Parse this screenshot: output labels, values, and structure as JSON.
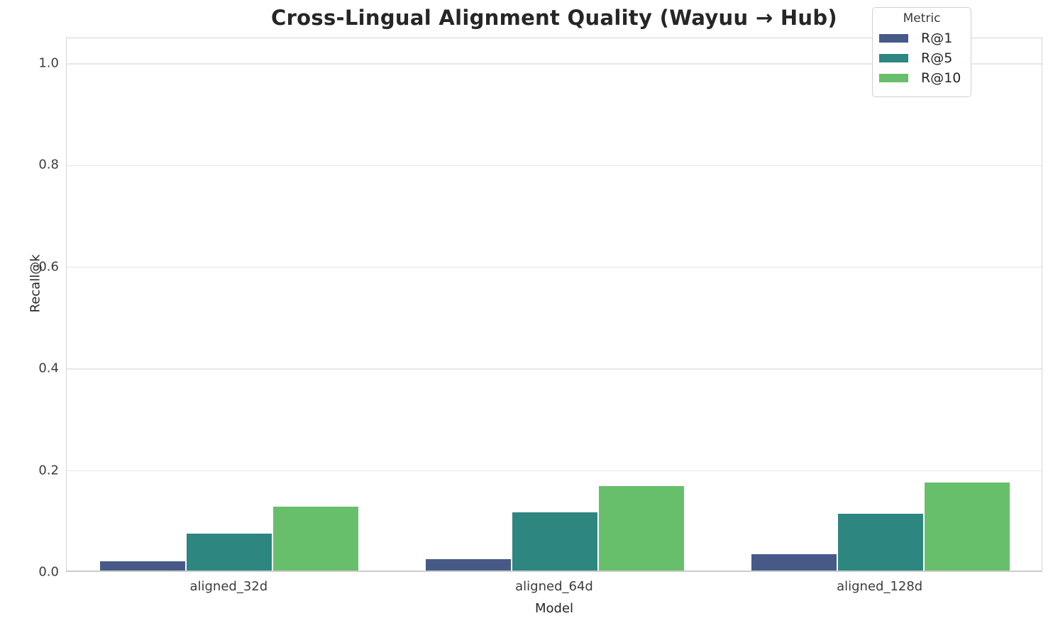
{
  "title": "Cross-Lingual Alignment Quality (Wayuu → Hub)",
  "chart_data": {
    "type": "bar",
    "title": "Cross-Lingual Alignment Quality (Wayuu → Hub)",
    "xlabel": "Model",
    "ylabel": "Recall@k",
    "categories": [
      "aligned_32d",
      "aligned_64d",
      "aligned_128d"
    ],
    "series": [
      {
        "name": "R@1",
        "color": "#475a87",
        "values": [
          0.018,
          0.022,
          0.032
        ]
      },
      {
        "name": "R@5",
        "color": "#2e8681",
        "values": [
          0.072,
          0.114,
          0.112
        ]
      },
      {
        "name": "R@10",
        "color": "#68bf6b",
        "values": [
          0.125,
          0.166,
          0.173
        ]
      }
    ],
    "ylim": [
      0,
      1.05
    ],
    "yticks": [
      0.0,
      0.2,
      0.4,
      0.6,
      0.8,
      1.0
    ],
    "ytick_labels": [
      "0.0",
      "0.2",
      "0.4",
      "0.6",
      "0.8",
      "1.0"
    ],
    "grid": "horizontal",
    "legend": {
      "title": "Metric",
      "position": "upper right"
    }
  },
  "style": {
    "gridline_color": "#e7e7e7",
    "spine_color": "#d4d4d4",
    "title_color": "#262626",
    "tick_color": "#3c3c3c"
  }
}
